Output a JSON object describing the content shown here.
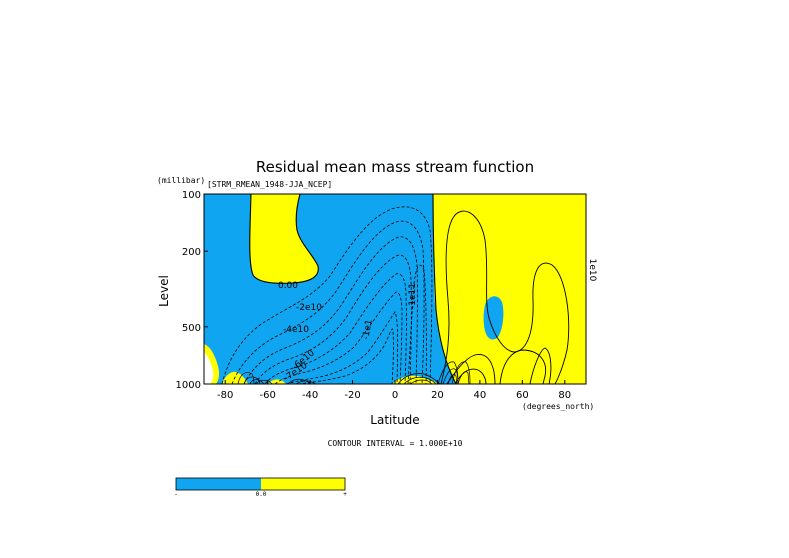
{
  "chart_data": {
    "type": "contour",
    "title": "Residual mean mass stream function",
    "dataset_label": "[STRM_RMEAN_1948-JJA_NCEP]",
    "xlabel": "Latitude",
    "x_units": "(degrees_north)",
    "ylabel": "Level",
    "y_units": "(millibar)",
    "xlim": [
      -90,
      90
    ],
    "ylim": [
      1000,
      100
    ],
    "y_scale": "log",
    "x_ticks": [
      -80,
      -60,
      -40,
      -20,
      0,
      20,
      40,
      60,
      80
    ],
    "x_tick_labels": [
      "-80",
      "-60",
      "-40",
      "-20",
      "0",
      "20",
      "40",
      "60",
      "80"
    ],
    "y_ticks": [
      100,
      200,
      500,
      1000
    ],
    "y_tick_labels": [
      "100",
      "200",
      "500",
      "1000"
    ],
    "contour_interval_label": "CONTOUR INTERVAL = 1.000E+10",
    "contour_labels": [
      {
        "text": "0.00",
        "lat": -50,
        "p": 290
      },
      {
        "text": "-2e10",
        "lat": -45,
        "p": 390
      },
      {
        "text": "-4e10",
        "lat": -48,
        "p": 480
      },
      {
        "text": "-6e10",
        "lat": -47,
        "p": 600
      },
      {
        "text": "-7e10",
        "lat": -48,
        "p": 750
      },
      {
        "text": "-1e1",
        "lat": -13,
        "p": 500
      },
      {
        "text": "-1e11",
        "lat": 9,
        "p": 330
      },
      {
        "text": "1e10",
        "lat": 88,
        "p": 260
      }
    ],
    "colors": {
      "negative": "#10a5f0",
      "positive": "#ffff00"
    },
    "colorbar": {
      "labels": [
        "-",
        "0.0",
        "+"
      ]
    }
  }
}
